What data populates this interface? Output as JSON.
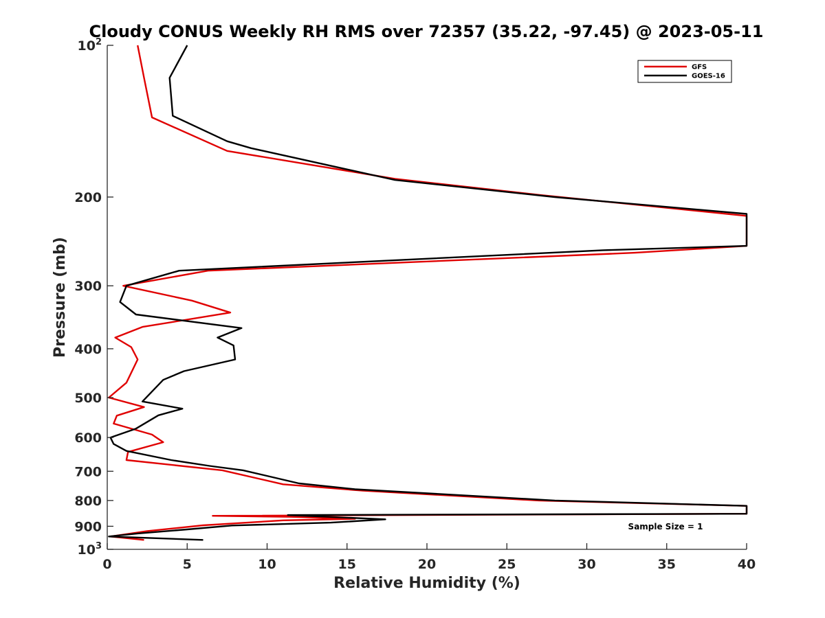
{
  "chart_data": {
    "type": "line",
    "title": "Cloudy CONUS Weekly RH RMS over 72357 (35.22, -97.45) @ 2023-05-11",
    "xlabel": "Relative Humidity (%)",
    "ylabel": "Pressure (mb)",
    "xlim": [
      0,
      40
    ],
    "ylim": [
      100,
      1000
    ],
    "y_scale": "log",
    "y_reversed": true,
    "x_ticks": [
      "0",
      "5",
      "10",
      "15",
      "20",
      "25",
      "30",
      "35",
      "40"
    ],
    "y_ticks": [
      {
        "value": 100,
        "base": "10",
        "exp": "2"
      },
      {
        "value": 200,
        "label": "200"
      },
      {
        "value": 300,
        "label": "300"
      },
      {
        "value": 400,
        "label": "400"
      },
      {
        "value": 500,
        "label": "500"
      },
      {
        "value": 600,
        "label": "600"
      },
      {
        "value": 700,
        "label": "700"
      },
      {
        "value": 800,
        "label": "800"
      },
      {
        "value": 900,
        "label": "900"
      },
      {
        "value": 1000,
        "base": "10",
        "exp": "3"
      }
    ],
    "grid": false,
    "legend_position": "top-right",
    "annotation": "Sample Size = 1",
    "series": [
      {
        "name": "GFS",
        "color": "#e00000",
        "points": [
          [
            1.9,
            100
          ],
          [
            2.3,
            116
          ],
          [
            2.8,
            139
          ],
          [
            7.5,
            162
          ],
          [
            18,
            184
          ],
          [
            27,
            198
          ],
          [
            40,
            218
          ],
          [
            40,
            250
          ],
          [
            33,
            258
          ],
          [
            6.3,
            280
          ],
          [
            1.0,
            300
          ],
          [
            5.3,
            321
          ],
          [
            7.7,
            339
          ],
          [
            2.2,
            362
          ],
          [
            0.5,
            380
          ],
          [
            1.5,
            397
          ],
          [
            1.9,
            420
          ],
          [
            1.2,
            467
          ],
          [
            0.1,
            500
          ],
          [
            2.3,
            522
          ],
          [
            0.6,
            543
          ],
          [
            0.4,
            563
          ],
          [
            2.8,
            592
          ],
          [
            3.5,
            613
          ],
          [
            1.3,
            641
          ],
          [
            1.2,
            665
          ],
          [
            7.2,
            697
          ],
          [
            11,
            743
          ],
          [
            16,
            765
          ],
          [
            27,
            800
          ],
          [
            40,
            820
          ],
          [
            40,
            850
          ],
          [
            6.6,
            858
          ],
          [
            11.5,
            862
          ],
          [
            15.5,
            870
          ],
          [
            11,
            876
          ],
          [
            6,
            896
          ],
          [
            2.5,
            920
          ],
          [
            0.2,
            943
          ],
          [
            2.3,
            958
          ]
        ]
      },
      {
        "name": "GOES-16",
        "color": "#000000",
        "points": [
          [
            5.0,
            100
          ],
          [
            3.9,
            116
          ],
          [
            4.1,
            138
          ],
          [
            7.5,
            155
          ],
          [
            9,
            160
          ],
          [
            18,
            185
          ],
          [
            28,
            200
          ],
          [
            40,
            216
          ],
          [
            40,
            250
          ],
          [
            31,
            255
          ],
          [
            4.5,
            280
          ],
          [
            1.2,
            300
          ],
          [
            0.8,
            323
          ],
          [
            1.8,
            342
          ],
          [
            8.4,
            364
          ],
          [
            6.9,
            380
          ],
          [
            7.9,
            394
          ],
          [
            8.0,
            420
          ],
          [
            4.8,
            443
          ],
          [
            3.5,
            461
          ],
          [
            2.2,
            509
          ],
          [
            4.7,
            526
          ],
          [
            3.2,
            542
          ],
          [
            1.8,
            576
          ],
          [
            0.2,
            600
          ],
          [
            0.4,
            618
          ],
          [
            1.2,
            638
          ],
          [
            4.0,
            665
          ],
          [
            6.4,
            683
          ],
          [
            8.5,
            697
          ],
          [
            12,
            740
          ],
          [
            15.5,
            760
          ],
          [
            28,
            800
          ],
          [
            40,
            820
          ],
          [
            40,
            850
          ],
          [
            11.3,
            855
          ],
          [
            17.4,
            872
          ],
          [
            14,
            885
          ],
          [
            7.8,
            897
          ],
          [
            5.0,
            913
          ],
          [
            1.9,
            930
          ],
          [
            0.1,
            943
          ],
          [
            6.0,
            958
          ]
        ]
      }
    ]
  }
}
